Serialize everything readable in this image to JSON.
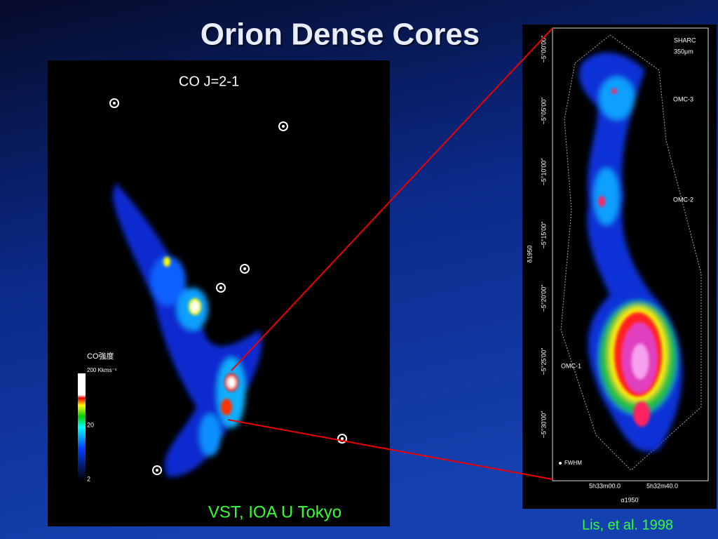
{
  "slide": {
    "title": "Orion Dense Cores",
    "left_panel": {
      "label": "CO J=2-1",
      "colorbar": {
        "title": "CO強度",
        "max_label": "200 Kkms⁻¹",
        "mid_label": "20",
        "min_label": "2"
      },
      "credit": "VST, IOA U Tokyo"
    },
    "right_panel": {
      "instrument": "SHARC",
      "wavelength": "350μm",
      "regions": [
        "OMC-3",
        "OMC-2",
        "OMC-1"
      ],
      "beam_label": "FWHM",
      "y_axis_label": "δ1950",
      "x_axis_label": "α1950",
      "y_ticks": [
        "−5°00'00\"",
        "−5°05'00\"",
        "−5°10'00\"",
        "−5°15'00\"",
        "−5°20'00\"",
        "−5°25'00\"",
        "−5°30'00\""
      ],
      "x_ticks": [
        "5h33m00.0",
        "5h32m40.0"
      ],
      "credit": "Lis, et al. 1998"
    }
  }
}
